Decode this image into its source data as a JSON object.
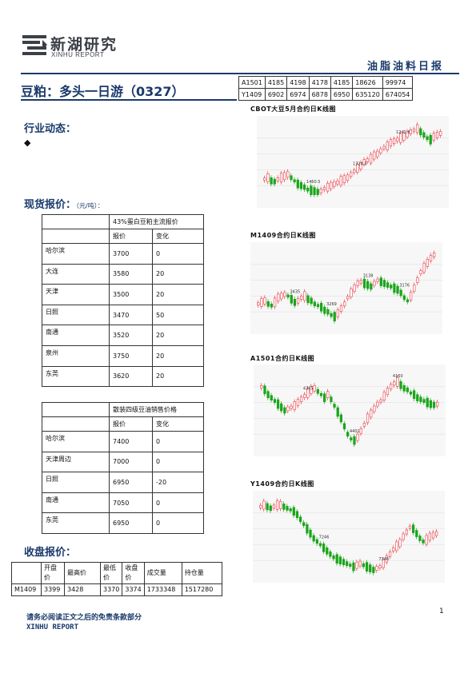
{
  "header": {
    "logo_cn": "新湖研究",
    "logo_en": "XINHU REPORT",
    "report_name": "油脂油料日报"
  },
  "title": "豆粕：多头一日游（0327）",
  "sections": {
    "industry": "行业动态：",
    "industry_bullet": "◆",
    "spot": "现货报价：",
    "spot_unit": "（元/吨）：",
    "closing": "收盘报价："
  },
  "top_table": {
    "rows": [
      [
        "A1501",
        "4185",
        "4198",
        "4178",
        "4185",
        "18626",
        "99974"
      ],
      [
        "Y1409",
        "6902",
        "6974",
        "6878",
        "6950",
        "635120",
        "674054"
      ]
    ]
  },
  "meal_table": {
    "caption": "43%蛋白豆粕主流报价",
    "headers": [
      "报价",
      "变化"
    ],
    "rows": [
      [
        "哈尔滨",
        "3700",
        "0"
      ],
      [
        "大连",
        "3580",
        "20"
      ],
      [
        "天津",
        "3500",
        "20"
      ],
      [
        "日照",
        "3470",
        "50"
      ],
      [
        "南通",
        "3520",
        "20"
      ],
      [
        "泉州",
        "3750",
        "20"
      ],
      [
        "东莞",
        "3620",
        "20"
      ]
    ]
  },
  "oil_table": {
    "caption": "散装四级豆油销售价格",
    "headers": [
      "报价",
      "变化"
    ],
    "rows": [
      [
        "哈尔滨",
        "7400",
        "0"
      ],
      [
        "天津周边",
        "7000",
        "0"
      ],
      [
        "日照",
        "6950",
        "-20"
      ],
      [
        "南通",
        "7050",
        "0"
      ],
      [
        "东莞",
        "6950",
        "0"
      ]
    ]
  },
  "close_table": {
    "headers": [
      "",
      "开盘价",
      "最高价",
      "最低价",
      "收盘价",
      "成交量",
      "持仓量"
    ],
    "rows": [
      [
        "M1409",
        "3399",
        "3428",
        "3370",
        "3374",
        "1733348",
        "1517280"
      ]
    ]
  },
  "charts": [
    {
      "title": "CBOT大豆5月合约日K线图",
      "annotations": [
        "1460.5",
        "1324.3",
        "1241.8"
      ],
      "colors": {
        "up": "#e8404a",
        "down": "#1aa51a"
      },
      "trend": [
        0.72,
        0.7,
        0.74,
        0.75,
        0.72,
        0.7,
        0.68,
        0.66,
        0.7,
        0.74,
        0.78,
        0.8,
        0.82,
        0.85,
        0.86,
        0.87,
        0.88,
        0.87,
        0.84,
        0.82,
        0.8,
        0.78,
        0.76,
        0.74,
        0.72,
        0.7,
        0.66,
        0.62,
        0.58,
        0.55,
        0.5,
        0.48,
        0.46,
        0.42,
        0.4,
        0.36,
        0.32,
        0.3,
        0.26,
        0.24,
        0.22,
        0.2,
        0.18,
        0.15,
        0.12,
        0.1,
        0.08,
        0.12,
        0.16,
        0.2,
        0.22,
        0.18,
        0.16,
        0.14
      ]
    },
    {
      "title": "M1409合约日K线图",
      "annotations": [
        "3435",
        "3269",
        "3138",
        "3176"
      ],
      "colors": {
        "up": "#e8404a",
        "down": "#1aa51a"
      },
      "trend": [
        0.7,
        0.68,
        0.66,
        0.7,
        0.72,
        0.68,
        0.62,
        0.6,
        0.58,
        0.6,
        0.64,
        0.68,
        0.66,
        0.62,
        0.6,
        0.64,
        0.66,
        0.7,
        0.72,
        0.74,
        0.78,
        0.8,
        0.84,
        0.86,
        0.82,
        0.76,
        0.7,
        0.62,
        0.56,
        0.5,
        0.44,
        0.42,
        0.44,
        0.46,
        0.48,
        0.44,
        0.4,
        0.42,
        0.44,
        0.46,
        0.48,
        0.5,
        0.52,
        0.56,
        0.62,
        0.66,
        0.6,
        0.5,
        0.4,
        0.3,
        0.24,
        0.18,
        0.12,
        0.08
      ]
    },
    {
      "title": "A1501合约日K线图",
      "annotations": [
        "4365",
        "4401",
        "4160"
      ],
      "colors": {
        "up": "#e8404a",
        "down": "#1aa51a"
      },
      "trend": [
        0.2,
        0.24,
        0.3,
        0.34,
        0.38,
        0.42,
        0.46,
        0.5,
        0.48,
        0.46,
        0.44,
        0.4,
        0.36,
        0.32,
        0.28,
        0.24,
        0.22,
        0.26,
        0.3,
        0.34,
        0.3,
        0.36,
        0.44,
        0.52,
        0.6,
        0.7,
        0.8,
        0.86,
        0.88,
        0.84,
        0.76,
        0.68,
        0.6,
        0.54,
        0.48,
        0.42,
        0.38,
        0.32,
        0.26,
        0.2,
        0.16,
        0.14,
        0.18,
        0.22,
        0.24,
        0.28,
        0.3,
        0.34,
        0.36,
        0.38,
        0.4,
        0.42,
        0.43,
        0.42
      ]
    },
    {
      "title": "Y1409合约日K线图",
      "annotations": [
        "7246",
        "7346"
      ],
      "colors": {
        "up": "#e8404a",
        "down": "#1aa51a"
      },
      "trend": [
        0.12,
        0.1,
        0.12,
        0.14,
        0.12,
        0.1,
        0.1,
        0.12,
        0.14,
        0.16,
        0.18,
        0.22,
        0.28,
        0.34,
        0.4,
        0.46,
        0.52,
        0.56,
        0.6,
        0.64,
        0.68,
        0.72,
        0.76,
        0.78,
        0.8,
        0.82,
        0.84,
        0.86,
        0.88,
        0.86,
        0.84,
        0.86,
        0.88,
        0.9,
        0.92,
        0.9,
        0.88,
        0.84,
        0.78,
        0.72,
        0.66,
        0.62,
        0.58,
        0.5,
        0.44,
        0.38,
        0.4,
        0.46,
        0.52,
        0.56,
        0.54,
        0.5,
        0.48,
        0.46
      ]
    }
  ],
  "footer": {
    "note": "请务必阅读正文之后的免责条款部分",
    "brand": "XINHU REPORT",
    "page": "1"
  }
}
